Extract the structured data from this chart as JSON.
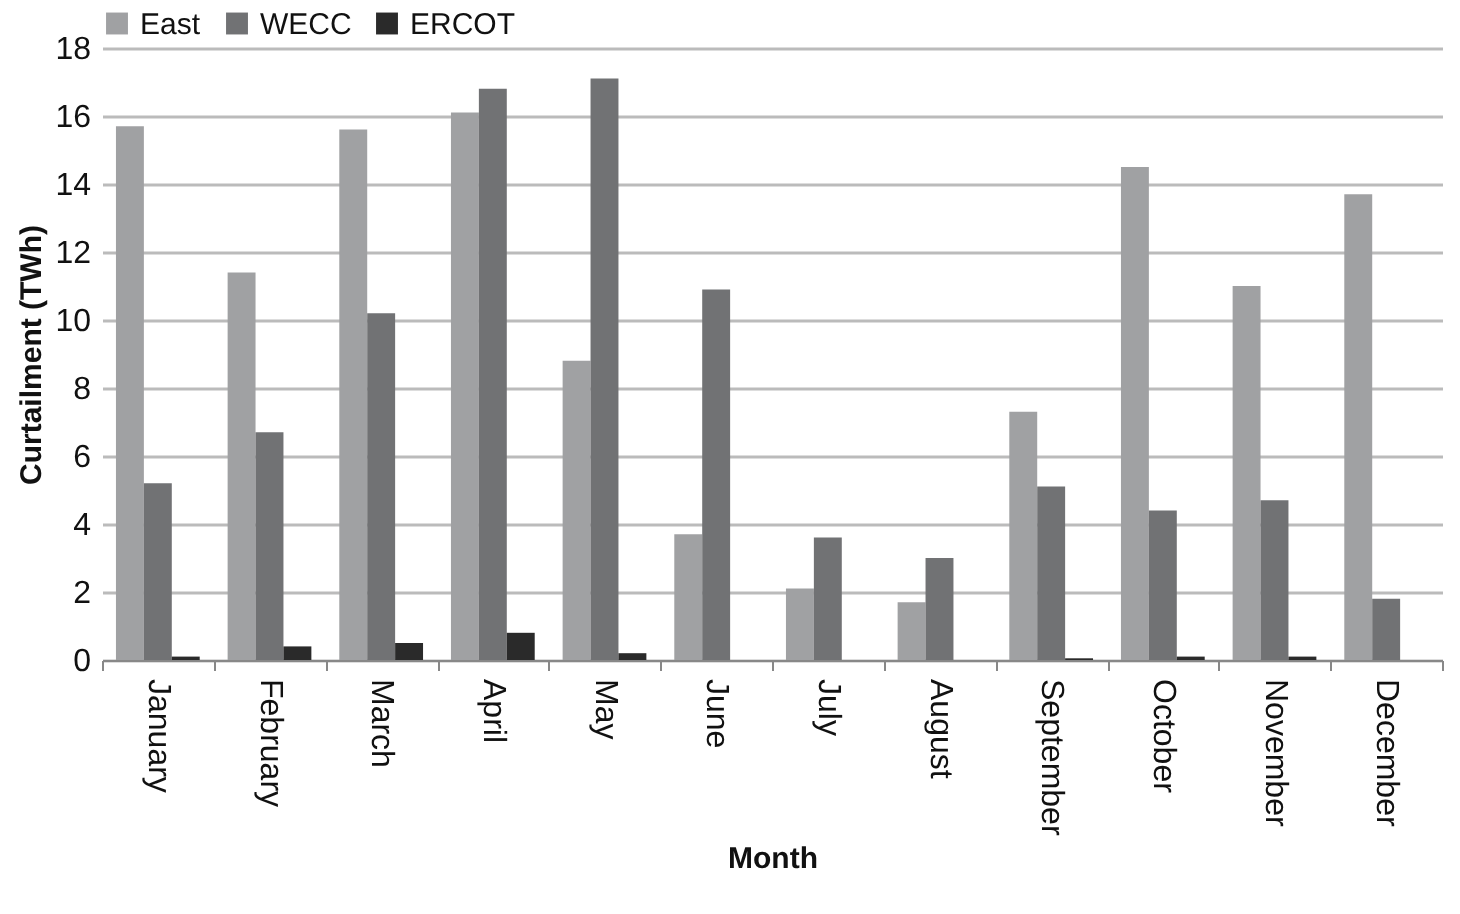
{
  "chart_data": {
    "type": "bar",
    "xlabel": "Month",
    "ylabel": "Curtailment (TWh)",
    "categories": [
      "January",
      "February",
      "March",
      "April",
      "May",
      "June",
      "July",
      "August",
      "September",
      "October",
      "November",
      "December"
    ],
    "series": [
      {
        "name": "East",
        "color": "#a0a1a3",
        "values": [
          15.7,
          11.4,
          15.6,
          16.1,
          8.8,
          3.7,
          2.1,
          1.7,
          7.3,
          14.5,
          11.0,
          13.7
        ]
      },
      {
        "name": "WECC",
        "color": "#717274",
        "values": [
          5.2,
          6.7,
          10.2,
          16.8,
          17.1,
          10.9,
          3.6,
          3.0,
          5.1,
          4.4,
          4.7,
          1.8
        ]
      },
      {
        "name": "ERCOT",
        "color": "#2a2a2a",
        "values": [
          0.1,
          0.4,
          0.5,
          0.8,
          0.2,
          0,
          0,
          0,
          0.05,
          0.1,
          0.1,
          0
        ]
      }
    ],
    "ylim": [
      0,
      18
    ],
    "yticks": [
      0,
      2,
      4,
      6,
      8,
      10,
      12,
      14,
      16,
      18
    ],
    "grid": "y",
    "legend": "top"
  }
}
